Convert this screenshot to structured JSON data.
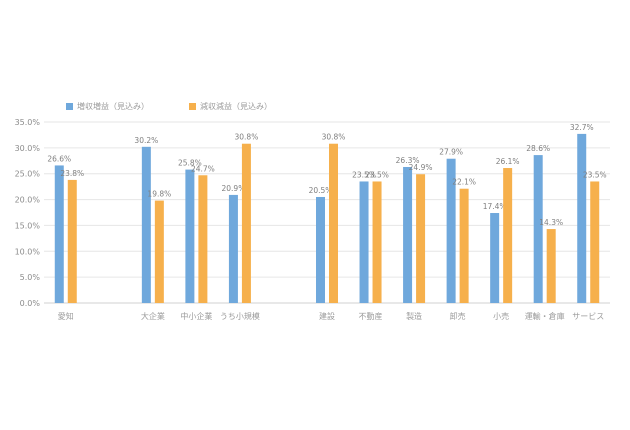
{
  "chart_data": {
    "type": "bar",
    "categories": [
      "愛知",
      "",
      "大企業",
      "中小企業",
      "うち小規模",
      "",
      "建設",
      "不動産",
      "製造",
      "卸売",
      "小売",
      "運輸・倉庫",
      "サービス"
    ],
    "series": [
      {
        "name": "増収増益（見込み）",
        "color": "#6fa8dc",
        "values": [
          26.6,
          null,
          30.2,
          25.8,
          20.9,
          null,
          20.5,
          23.5,
          26.3,
          27.9,
          17.4,
          28.6,
          32.7
        ],
        "labels": [
          "26.6%",
          "",
          "30.2%",
          "25.8%",
          "20.9%",
          "",
          "20.5%",
          "23.5%",
          "26.3%",
          "27.9%",
          "17.4%",
          "28.6%",
          "32.7%"
        ]
      },
      {
        "name": "減収減益（見込み）",
        "color": "#f6b04c",
        "values": [
          23.8,
          null,
          19.8,
          24.7,
          30.8,
          null,
          30.8,
          23.5,
          24.9,
          22.1,
          26.1,
          14.3,
          23.5
        ],
        "labels": [
          "23.8%",
          "",
          "19.8%",
          "24.7%",
          "30.8%",
          "",
          "30.8%",
          "23.5%",
          "24.9%",
          "22.1%",
          "26.1%",
          "14.3%",
          "23.5%"
        ]
      }
    ],
    "yticks": [
      "0.0%",
      "5.0%",
      "10.0%",
      "15.0%",
      "20.0%",
      "25.0%",
      "30.0%",
      "35.0%"
    ],
    "ylim": [
      0,
      35
    ],
    "grid": true,
    "legend_position": "top-left"
  }
}
